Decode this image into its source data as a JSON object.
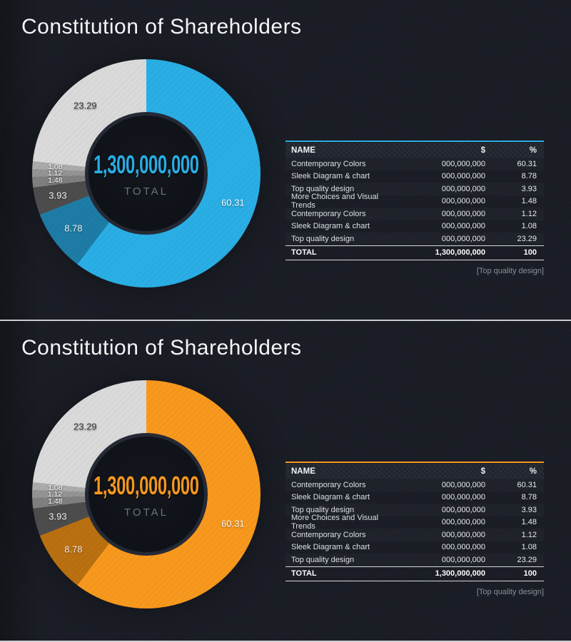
{
  "panels": [
    {
      "accent": "#29aee5",
      "title": "Constitution of Shareholders",
      "donut": {
        "center_value": "1,300,000,000",
        "center_label": "TOTAL"
      },
      "slices": [
        {
          "pct": "60.31",
          "value": 60.31,
          "color": "#29aee5",
          "label_color": "#ffffff"
        },
        {
          "pct": "8.78",
          "value": 8.78,
          "color": "#1d7ca6",
          "label_color": "#eef5f9"
        },
        {
          "pct": "3.93",
          "value": 3.93,
          "color": "#4c4c4c",
          "label_color": "#f2f2f2"
        },
        {
          "pct": "1.48",
          "value": 1.48,
          "color": "#7f7f7f",
          "label_color": "#ffffff"
        },
        {
          "pct": "1.12",
          "value": 1.12,
          "color": "#949494",
          "label_color": "#ffffff"
        },
        {
          "pct": "1.08",
          "value": 1.08,
          "color": "#ababab",
          "label_color": "#ffffff"
        },
        {
          "pct": "23.29",
          "value": 23.29,
          "color": "#dadada",
          "label_color": "#3d3d3d"
        }
      ],
      "table": {
        "headers": [
          "NAME",
          "$",
          "%"
        ],
        "rows": [
          [
            "Contemporary Colors",
            "000,000,000",
            "60.31"
          ],
          [
            "Sleek Diagram & chart",
            "000,000,000",
            "8.78"
          ],
          [
            "Top quality design",
            "000,000,000",
            "3.93"
          ],
          [
            "More Choices and Visual Trends",
            "000,000,000",
            "1.48"
          ],
          [
            "Contemporary Colors",
            "000,000,000",
            "1.12"
          ],
          [
            "Sleek Diagram & chart",
            "000,000,000",
            "1.08"
          ],
          [
            "Top quality design",
            "000,000,000",
            "23.29"
          ]
        ],
        "total_row": [
          "TOTAL",
          "1,300,000,000",
          "100"
        ]
      },
      "footer": "[Top quality design]"
    },
    {
      "accent": "#f8981d",
      "title": "Constitution of Shareholders",
      "donut": {
        "center_value": "1,300,000,000",
        "center_label": "TOTAL"
      },
      "slices": [
        {
          "pct": "60.31",
          "value": 60.31,
          "color": "#f8981d",
          "label_color": "#ffffff"
        },
        {
          "pct": "8.78",
          "value": 8.78,
          "color": "#ba7010",
          "label_color": "#f7efe2"
        },
        {
          "pct": "3.93",
          "value": 3.93,
          "color": "#4c4c4c",
          "label_color": "#f2f2f2"
        },
        {
          "pct": "1.48",
          "value": 1.48,
          "color": "#7f7f7f",
          "label_color": "#ffffff"
        },
        {
          "pct": "1.12",
          "value": 1.12,
          "color": "#949494",
          "label_color": "#ffffff"
        },
        {
          "pct": "1.08",
          "value": 1.08,
          "color": "#ababab",
          "label_color": "#ffffff"
        },
        {
          "pct": "23.29",
          "value": 23.29,
          "color": "#dadada",
          "label_color": "#3d3d3d"
        }
      ],
      "table": {
        "headers": [
          "NAME",
          "$",
          "%"
        ],
        "rows": [
          [
            "Contemporary Colors",
            "000,000,000",
            "60.31"
          ],
          [
            "Sleek Diagram & chart",
            "000,000,000",
            "8.78"
          ],
          [
            "Top quality design",
            "000,000,000",
            "3.93"
          ],
          [
            "More Choices and Visual Trends",
            "000,000,000",
            "1.48"
          ],
          [
            "Contemporary Colors",
            "000,000,000",
            "1.12"
          ],
          [
            "Sleek Diagram & chart",
            "000,000,000",
            "1.08"
          ],
          [
            "Top quality design",
            "000,000,000",
            "23.29"
          ]
        ],
        "total_row": [
          "TOTAL",
          "1,300,000,000",
          "100"
        ]
      },
      "footer": "[Top quality design]"
    }
  ],
  "chart_data": [
    {
      "type": "pie",
      "variant": "donut",
      "title": "Constitution of Shareholders",
      "categories": [
        "Contemporary Colors",
        "Sleek Diagram & chart",
        "Top quality design",
        "More Choices and Visual Trends",
        "Contemporary Colors",
        "Sleek Diagram & chart",
        "Top quality design"
      ],
      "values": [
        60.31,
        8.78,
        3.93,
        1.48,
        1.12,
        1.08,
        23.29
      ],
      "colors": [
        "#29aee5",
        "#1d7ca6",
        "#4c4c4c",
        "#7f7f7f",
        "#949494",
        "#ababab",
        "#dadada"
      ],
      "dollar_values": [
        "000,000,000",
        "000,000,000",
        "000,000,000",
        "000,000,000",
        "000,000,000",
        "000,000,000",
        "000,000,000"
      ],
      "center_total": "1,300,000,000",
      "center_label": "TOTAL",
      "total_row": {
        "label": "TOTAL",
        "dollars": "1,300,000,000",
        "percent": 100
      },
      "start_angle_deg": 0,
      "direction": "clockwise",
      "legend_position": "table-right",
      "footnote": "[Top quality design]"
    },
    {
      "type": "pie",
      "variant": "donut",
      "title": "Constitution of Shareholders",
      "categories": [
        "Contemporary Colors",
        "Sleek Diagram & chart",
        "Top quality design",
        "More Choices and Visual Trends",
        "Contemporary Colors",
        "Sleek Diagram & chart",
        "Top quality design"
      ],
      "values": [
        60.31,
        8.78,
        3.93,
        1.48,
        1.12,
        1.08,
        23.29
      ],
      "colors": [
        "#f8981d",
        "#ba7010",
        "#4c4c4c",
        "#7f7f7f",
        "#949494",
        "#ababab",
        "#dadada"
      ],
      "dollar_values": [
        "000,000,000",
        "000,000,000",
        "000,000,000",
        "000,000,000",
        "000,000,000",
        "000,000,000",
        "000,000,000"
      ],
      "center_total": "1,300,000,000",
      "center_label": "TOTAL",
      "total_row": {
        "label": "TOTAL",
        "dollars": "1,300,000,000",
        "percent": 100
      },
      "start_angle_deg": 0,
      "direction": "clockwise",
      "legend_position": "table-right",
      "footnote": "[Top quality design]"
    }
  ]
}
